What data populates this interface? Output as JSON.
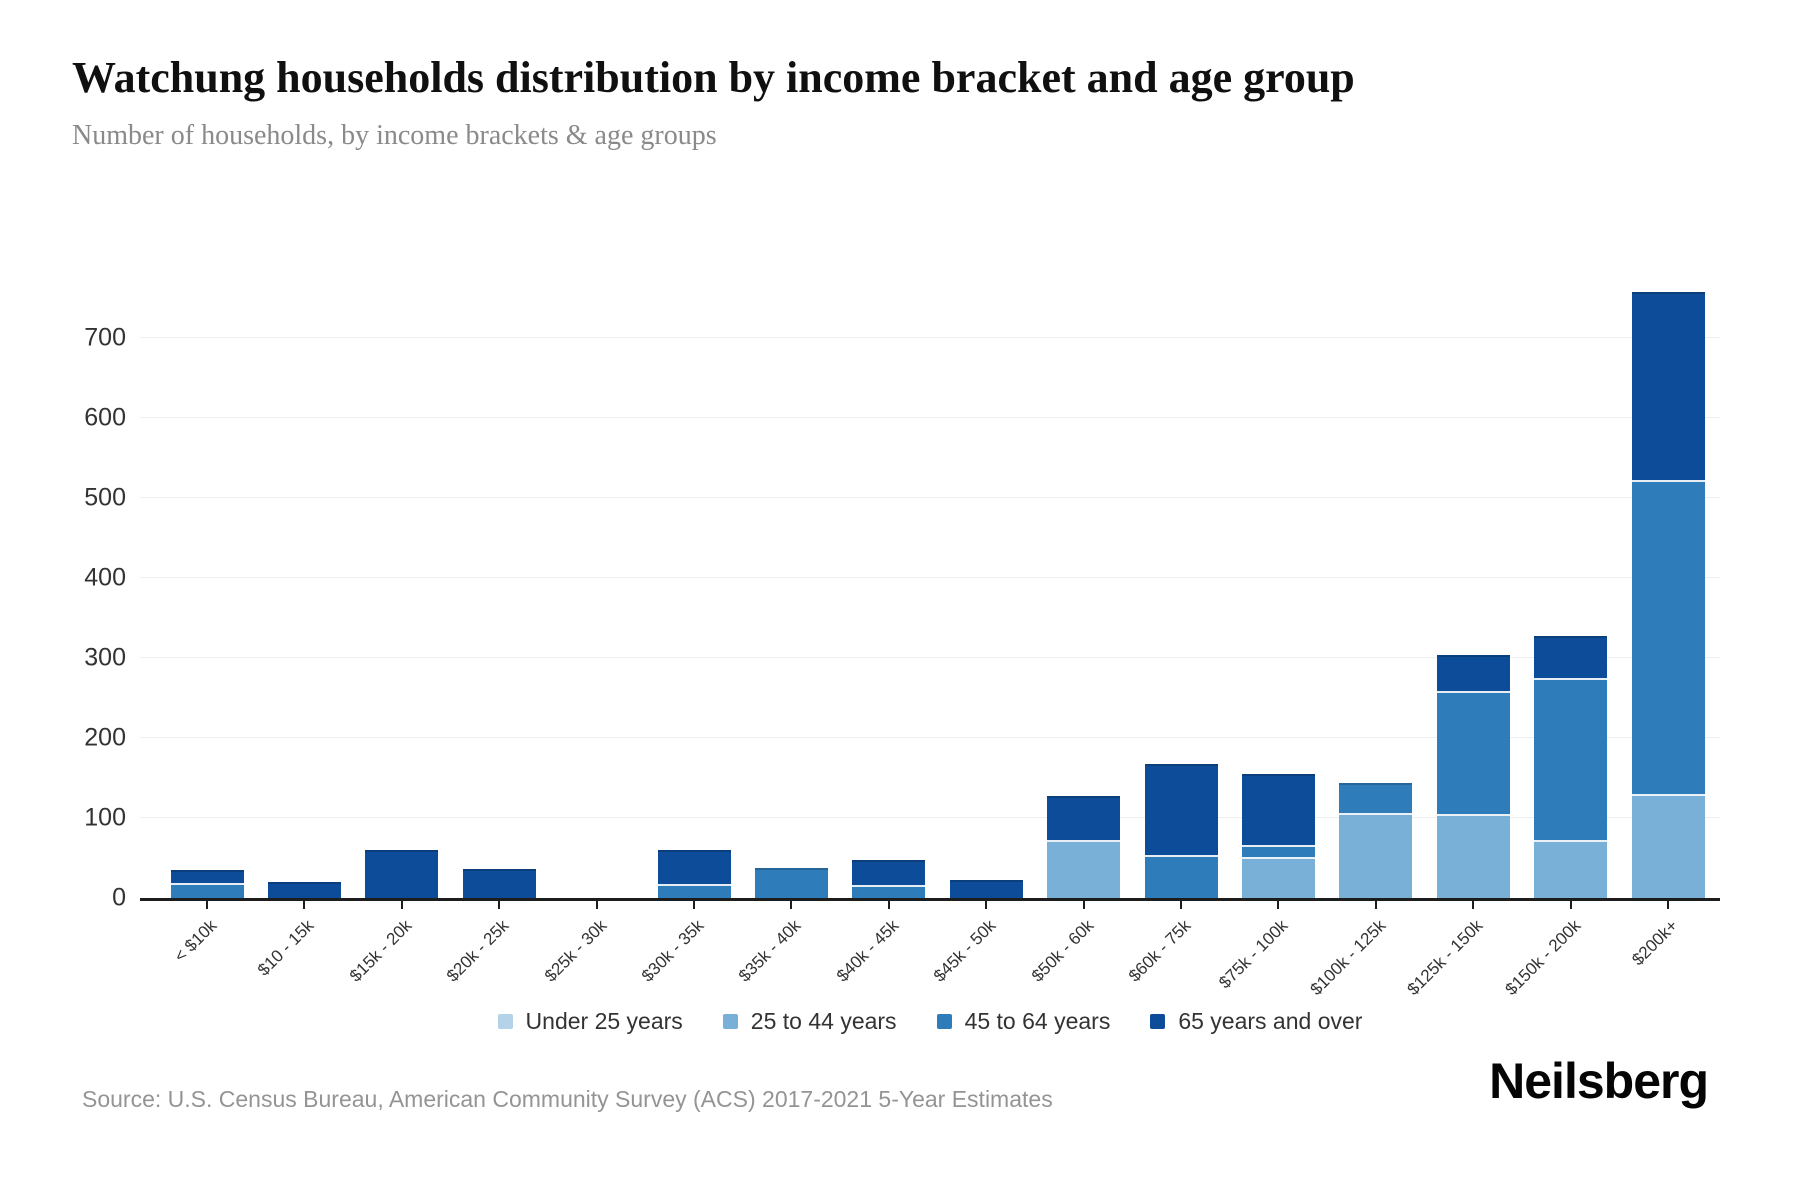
{
  "header": {
    "title": "Watchung households distribution by income bracket and age group",
    "subtitle": "Number of households, by income brackets & age groups"
  },
  "chart_data": {
    "type": "bar",
    "stacked": true,
    "title": "Watchung households distribution by income bracket and age group",
    "subtitle": "Number of households, by income brackets & age groups",
    "xlabel": "",
    "ylabel": "",
    "ylim": [
      0,
      810
    ],
    "yticks": [
      0,
      100,
      200,
      300,
      400,
      500,
      600,
      700
    ],
    "grid": true,
    "legend_position": "bottom",
    "categories": [
      "< $10k",
      "$10 - 15k",
      "$15k - 20k",
      "$20k - 25k",
      "$25k - 30k",
      "$30k - 35k",
      "$35k - 40k",
      "$40k - 45k",
      "$45k - 50k",
      "$50k - 60k",
      "$60k - 75k",
      "$75k - 100k",
      "$100k - 125k",
      "$125k - 150k",
      "$150k - 200k",
      "$200k+"
    ],
    "series": [
      {
        "name": "Under 25 years",
        "color": "#b5d3e8",
        "values": [
          0,
          0,
          0,
          0,
          0,
          0,
          0,
          0,
          0,
          0,
          0,
          0,
          0,
          0,
          0,
          0
        ]
      },
      {
        "name": "25 to 44 years",
        "color": "#79b0d8",
        "values": [
          0,
          0,
          0,
          0,
          0,
          0,
          0,
          0,
          0,
          70,
          0,
          49,
          104,
          102,
          70,
          128
        ]
      },
      {
        "name": "45 to 64 years",
        "color": "#2e7cba",
        "values": [
          16,
          0,
          0,
          0,
          0,
          15,
          35,
          14,
          0,
          0,
          51,
          12,
          35,
          152,
          200,
          390
        ]
      },
      {
        "name": "65 years and over",
        "color": "#0d4c98",
        "values": [
          14,
          17,
          58,
          34,
          0,
          40,
          0,
          29,
          20,
          52,
          112,
          87,
          0,
          42,
          50,
          232
        ]
      }
    ],
    "totals": [
      30,
      17,
      58,
      34,
      0,
      55,
      35,
      43,
      20,
      122,
      163,
      148,
      139,
      296,
      320,
      750
    ]
  },
  "footer": {
    "source": "Source: U.S. Census Bureau, American Community Survey (ACS) 2017-2021 5-Year Estimates",
    "brand": "Neilsberg"
  }
}
